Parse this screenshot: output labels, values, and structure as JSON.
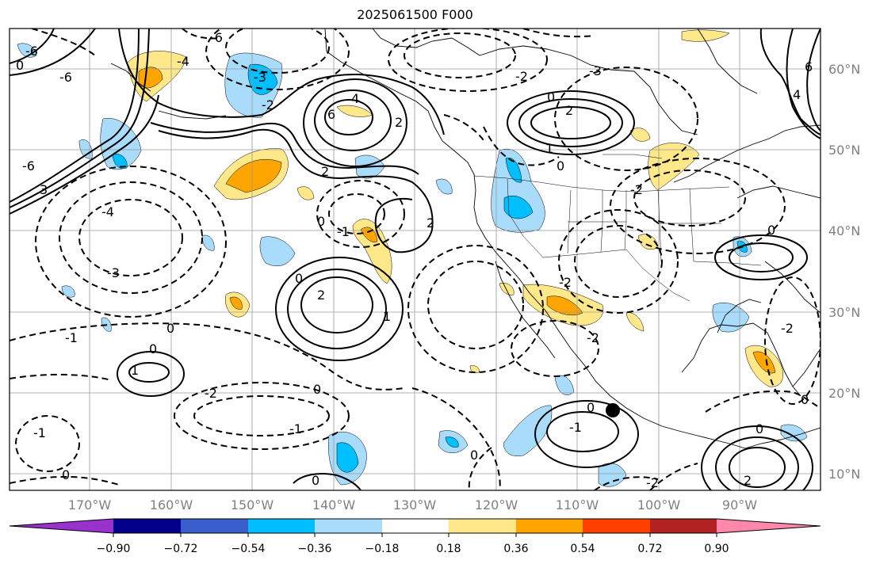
{
  "title": "2025061500 F000",
  "lon_labels": [
    "170°W",
    "160°W",
    "150°W",
    "140°W",
    "130°W",
    "120°W",
    "110°W",
    "100°W",
    "90°W"
  ],
  "lat_labels": [
    "60°N",
    "50°N",
    "40°N",
    "30°N",
    "20°N",
    "10°N"
  ],
  "colorbar": {
    "ticks": [
      "−0.90",
      "−0.72",
      "−0.54",
      "−0.36",
      "−0.18",
      "0.18",
      "0.36",
      "0.54",
      "0.72",
      "0.90"
    ],
    "colors": [
      "#9932cc",
      "#00008b",
      "#3a5fcd",
      "#00bfff",
      "#a8dcfa",
      "#ffffff",
      "#ffe88a",
      "#ffa500",
      "#ff3f00",
      "#b22222",
      "#ff88aa"
    ]
  },
  "contour_labels": [
    "6",
    "4",
    "2",
    "0",
    "-1",
    "-2",
    "-3",
    "-4",
    "-6",
    "1",
    "3"
  ],
  "colors": {
    "frame": "#000000",
    "grid": "#9a9a9a",
    "tick_label": "#808080",
    "coast": "#000000"
  }
}
